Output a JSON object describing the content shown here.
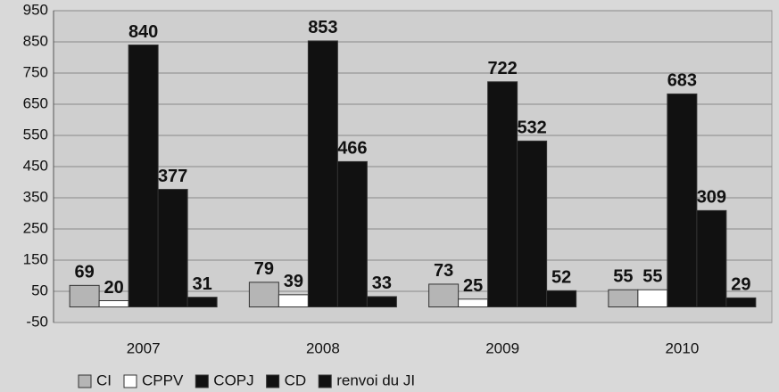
{
  "chart_data": {
    "type": "bar",
    "categories": [
      "2007",
      "2008",
      "2009",
      "2010"
    ],
    "series": [
      {
        "name": "CI",
        "color": "#b5b5b5",
        "values": [
          69,
          79,
          73,
          55
        ]
      },
      {
        "name": "CPPV",
        "color": "#ffffff",
        "values": [
          20,
          39,
          25,
          55
        ]
      },
      {
        "name": "COPJ",
        "color": "#111111",
        "values": [
          840,
          853,
          722,
          683
        ]
      },
      {
        "name": "CD",
        "color": "#111111",
        "values": [
          377,
          466,
          532,
          309
        ]
      },
      {
        "name": "renvoi du JI",
        "color": "#111111",
        "values": [
          31,
          33,
          52,
          29
        ]
      }
    ],
    "ylim": [
      -50,
      950
    ],
    "yticks": [
      -50,
      50,
      150,
      250,
      350,
      450,
      550,
      650,
      750,
      850,
      950
    ],
    "grid": true,
    "legend": "bottom"
  }
}
